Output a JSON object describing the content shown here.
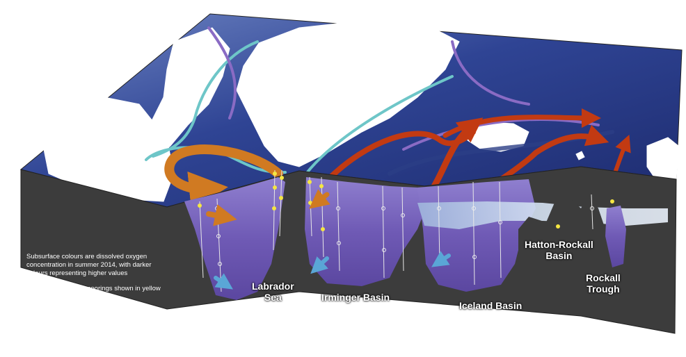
{
  "basins": {
    "labrador": "Labrador\nSea",
    "irminger": "Irminger Basin",
    "iceland": "Iceland Basin",
    "hatton": "Hatton-Rockall\nBasin",
    "rockall": "Rockall\nTrough"
  },
  "notes": {
    "subsurface": "Subsurface colours are dissolved oxygen concentration in summer 2014, with darker colours representing higher values",
    "sensors": "Oxygen sensors on moorings shown in yellow"
  },
  "colors": {
    "surface_ocean": "#2b3d8c",
    "land": "#ffffff",
    "section_base": "#3e3e3e",
    "oxygen_high": "#6b55b0",
    "oxygen_low": "#c9d8ec",
    "sensor": "#f5e642",
    "warm_current": "#c23a12",
    "cold_current": "#6ec6c8",
    "deep_current": "#8a6bc4"
  }
}
